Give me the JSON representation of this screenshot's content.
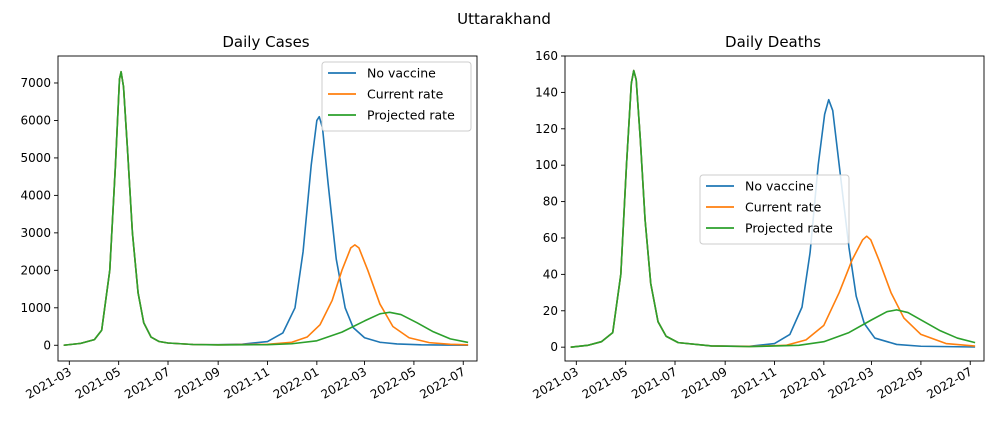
{
  "figure": {
    "suptitle": "Uttarakhand"
  },
  "colors": {
    "no_vaccine": "#1f77b4",
    "current_rate": "#ff7f0e",
    "projected_rate": "#2ca02c"
  },
  "chart_data": [
    {
      "type": "line",
      "title": "Daily Cases",
      "xlabel": "",
      "ylabel": "",
      "x_type": "date",
      "xlim": [
        "2021-02-15",
        "2022-07-18"
      ],
      "ylim": [
        -420,
        7720
      ],
      "x_ticks": [
        "2021-03",
        "2021-05",
        "2021-07",
        "2021-09",
        "2021-11",
        "2022-01",
        "2022-03",
        "2022-05",
        "2022-07"
      ],
      "y_ticks": [
        0,
        1000,
        2000,
        3000,
        4000,
        5000,
        6000,
        7000
      ],
      "grid": false,
      "legend_position": "upper right",
      "series": [
        {
          "name": "No vaccine",
          "color": "#1f77b4",
          "points": [
            [
              "2021-02-22",
              0
            ],
            [
              "2021-03-15",
              50
            ],
            [
              "2021-04-01",
              150
            ],
            [
              "2021-04-10",
              400
            ],
            [
              "2021-04-20",
              2000
            ],
            [
              "2021-04-27",
              4800
            ],
            [
              "2021-05-02",
              7100
            ],
            [
              "2021-05-04",
              7300
            ],
            [
              "2021-05-07",
              6900
            ],
            [
              "2021-05-12",
              5200
            ],
            [
              "2021-05-18",
              3000
            ],
            [
              "2021-05-25",
              1400
            ],
            [
              "2021-06-01",
              600
            ],
            [
              "2021-06-10",
              220
            ],
            [
              "2021-06-20",
              100
            ],
            [
              "2021-07-01",
              60
            ],
            [
              "2021-08-01",
              20
            ],
            [
              "2021-09-01",
              15
            ],
            [
              "2021-10-01",
              30
            ],
            [
              "2021-11-01",
              100
            ],
            [
              "2021-11-20",
              330
            ],
            [
              "2021-12-05",
              1000
            ],
            [
              "2021-12-15",
              2500
            ],
            [
              "2021-12-25",
              4800
            ],
            [
              "2022-01-01",
              6000
            ],
            [
              "2022-01-04",
              6100
            ],
            [
              "2022-01-08",
              5800
            ],
            [
              "2022-01-15",
              4300
            ],
            [
              "2022-01-25",
              2300
            ],
            [
              "2022-02-05",
              1000
            ],
            [
              "2022-02-15",
              470
            ],
            [
              "2022-03-01",
              200
            ],
            [
              "2022-03-20",
              80
            ],
            [
              "2022-04-10",
              35
            ],
            [
              "2022-05-10",
              12
            ],
            [
              "2022-06-10",
              5
            ],
            [
              "2022-07-07",
              3
            ]
          ]
        },
        {
          "name": "Current rate",
          "color": "#ff7f0e",
          "points": [
            [
              "2021-02-22",
              0
            ],
            [
              "2021-03-15",
              50
            ],
            [
              "2021-04-01",
              150
            ],
            [
              "2021-04-10",
              400
            ],
            [
              "2021-04-20",
              2000
            ],
            [
              "2021-04-27",
              4800
            ],
            [
              "2021-05-02",
              7100
            ],
            [
              "2021-05-04",
              7300
            ],
            [
              "2021-05-07",
              6900
            ],
            [
              "2021-05-12",
              5200
            ],
            [
              "2021-05-18",
              3000
            ],
            [
              "2021-05-25",
              1400
            ],
            [
              "2021-06-01",
              600
            ],
            [
              "2021-06-10",
              220
            ],
            [
              "2021-06-20",
              100
            ],
            [
              "2021-07-01",
              60
            ],
            [
              "2021-08-01",
              20
            ],
            [
              "2021-09-01",
              12
            ],
            [
              "2021-11-01",
              25
            ],
            [
              "2021-12-01",
              80
            ],
            [
              "2021-12-20",
              220
            ],
            [
              "2022-01-05",
              550
            ],
            [
              "2022-01-20",
              1200
            ],
            [
              "2022-02-01",
              2000
            ],
            [
              "2022-02-12",
              2600
            ],
            [
              "2022-02-17",
              2680
            ],
            [
              "2022-02-22",
              2600
            ],
            [
              "2022-03-05",
              2000
            ],
            [
              "2022-03-20",
              1100
            ],
            [
              "2022-04-05",
              500
            ],
            [
              "2022-04-25",
              200
            ],
            [
              "2022-05-20",
              70
            ],
            [
              "2022-06-15",
              25
            ],
            [
              "2022-07-07",
              12
            ]
          ]
        },
        {
          "name": "Projected rate",
          "color": "#2ca02c",
          "points": [
            [
              "2021-02-22",
              0
            ],
            [
              "2021-03-15",
              50
            ],
            [
              "2021-04-01",
              150
            ],
            [
              "2021-04-10",
              400
            ],
            [
              "2021-04-20",
              2000
            ],
            [
              "2021-04-27",
              4800
            ],
            [
              "2021-05-02",
              7100
            ],
            [
              "2021-05-04",
              7300
            ],
            [
              "2021-05-07",
              6900
            ],
            [
              "2021-05-12",
              5200
            ],
            [
              "2021-05-18",
              3000
            ],
            [
              "2021-05-25",
              1400
            ],
            [
              "2021-06-01",
              600
            ],
            [
              "2021-06-10",
              220
            ],
            [
              "2021-06-20",
              100
            ],
            [
              "2021-07-01",
              60
            ],
            [
              "2021-08-01",
              20
            ],
            [
              "2021-09-01",
              10
            ],
            [
              "2021-11-01",
              15
            ],
            [
              "2021-12-01",
              40
            ],
            [
              "2022-01-01",
              120
            ],
            [
              "2022-02-01",
              350
            ],
            [
              "2022-03-01",
              650
            ],
            [
              "2022-03-20",
              840
            ],
            [
              "2022-04-01",
              880
            ],
            [
              "2022-04-15",
              820
            ],
            [
              "2022-05-05",
              600
            ],
            [
              "2022-05-25",
              360
            ],
            [
              "2022-06-15",
              170
            ],
            [
              "2022-07-07",
              75
            ]
          ]
        }
      ]
    },
    {
      "type": "line",
      "title": "Daily Deaths",
      "xlabel": "",
      "ylabel": "",
      "x_type": "date",
      "xlim": [
        "2021-02-15",
        "2022-07-18"
      ],
      "ylim": [
        -7.6,
        160
      ],
      "x_ticks": [
        "2021-03",
        "2021-05",
        "2021-07",
        "2021-09",
        "2021-11",
        "2022-01",
        "2022-03",
        "2022-05",
        "2022-07"
      ],
      "y_ticks": [
        0,
        20,
        40,
        60,
        80,
        100,
        120,
        140,
        160
      ],
      "grid": false,
      "legend_position": "center right",
      "series": [
        {
          "name": "No vaccine",
          "color": "#1f77b4",
          "points": [
            [
              "2021-02-22",
              0
            ],
            [
              "2021-03-15",
              1
            ],
            [
              "2021-04-01",
              3
            ],
            [
              "2021-04-15",
              8
            ],
            [
              "2021-04-25",
              40
            ],
            [
              "2021-05-02",
              100
            ],
            [
              "2021-05-08",
              145
            ],
            [
              "2021-05-11",
              152
            ],
            [
              "2021-05-14",
              147
            ],
            [
              "2021-05-19",
              115
            ],
            [
              "2021-05-25",
              70
            ],
            [
              "2021-06-01",
              35
            ],
            [
              "2021-06-10",
              14
            ],
            [
              "2021-06-20",
              6
            ],
            [
              "2021-07-05",
              2.5
            ],
            [
              "2021-08-15",
              0.7
            ],
            [
              "2021-10-01",
              0.5
            ],
            [
              "2021-11-01",
              2
            ],
            [
              "2021-11-20",
              7
            ],
            [
              "2021-12-05",
              22
            ],
            [
              "2021-12-15",
              52
            ],
            [
              "2021-12-25",
              100
            ],
            [
              "2022-01-02",
              128
            ],
            [
              "2022-01-07",
              136
            ],
            [
              "2022-01-12",
              130
            ],
            [
              "2022-01-20",
              100
            ],
            [
              "2022-02-01",
              55
            ],
            [
              "2022-02-10",
              28
            ],
            [
              "2022-02-20",
              13
            ],
            [
              "2022-03-05",
              5
            ],
            [
              "2022-04-01",
              1.5
            ],
            [
              "2022-05-01",
              0.5
            ],
            [
              "2022-07-07",
              0.1
            ]
          ]
        },
        {
          "name": "Current rate",
          "color": "#ff7f0e",
          "points": [
            [
              "2021-02-22",
              0
            ],
            [
              "2021-03-15",
              1
            ],
            [
              "2021-04-01",
              3
            ],
            [
              "2021-04-15",
              8
            ],
            [
              "2021-04-25",
              40
            ],
            [
              "2021-05-02",
              100
            ],
            [
              "2021-05-08",
              145
            ],
            [
              "2021-05-11",
              152
            ],
            [
              "2021-05-14",
              147
            ],
            [
              "2021-05-19",
              115
            ],
            [
              "2021-05-25",
              70
            ],
            [
              "2021-06-01",
              35
            ],
            [
              "2021-06-10",
              14
            ],
            [
              "2021-06-20",
              6
            ],
            [
              "2021-07-05",
              2.5
            ],
            [
              "2021-08-15",
              0.7
            ],
            [
              "2021-10-01",
              0.4
            ],
            [
              "2021-11-15",
              1
            ],
            [
              "2021-12-10",
              4
            ],
            [
              "2022-01-01",
              12
            ],
            [
              "2022-01-20",
              30
            ],
            [
              "2022-02-05",
              48
            ],
            [
              "2022-02-18",
              59
            ],
            [
              "2022-02-23",
              61
            ],
            [
              "2022-02-28",
              59
            ],
            [
              "2022-03-10",
              48
            ],
            [
              "2022-03-25",
              30
            ],
            [
              "2022-04-10",
              16
            ],
            [
              "2022-05-01",
              7
            ],
            [
              "2022-06-01",
              2
            ],
            [
              "2022-07-07",
              0.6
            ]
          ]
        },
        {
          "name": "Projected rate",
          "color": "#2ca02c",
          "points": [
            [
              "2021-02-22",
              0
            ],
            [
              "2021-03-15",
              1
            ],
            [
              "2021-04-01",
              3
            ],
            [
              "2021-04-15",
              8
            ],
            [
              "2021-04-25",
              40
            ],
            [
              "2021-05-02",
              100
            ],
            [
              "2021-05-08",
              145
            ],
            [
              "2021-05-11",
              152
            ],
            [
              "2021-05-14",
              147
            ],
            [
              "2021-05-19",
              115
            ],
            [
              "2021-05-25",
              70
            ],
            [
              "2021-06-01",
              35
            ],
            [
              "2021-06-10",
              14
            ],
            [
              "2021-06-20",
              6
            ],
            [
              "2021-07-05",
              2.5
            ],
            [
              "2021-08-15",
              0.7
            ],
            [
              "2021-10-01",
              0.3
            ],
            [
              "2021-12-01",
              1
            ],
            [
              "2022-01-01",
              3
            ],
            [
              "2022-02-01",
              8
            ],
            [
              "2022-03-01",
              15
            ],
            [
              "2022-03-20",
              19.5
            ],
            [
              "2022-04-01",
              20.5
            ],
            [
              "2022-04-15",
              19
            ],
            [
              "2022-05-05",
              14
            ],
            [
              "2022-05-25",
              9
            ],
            [
              "2022-06-15",
              5
            ],
            [
              "2022-07-07",
              2.5
            ]
          ]
        }
      ]
    }
  ]
}
